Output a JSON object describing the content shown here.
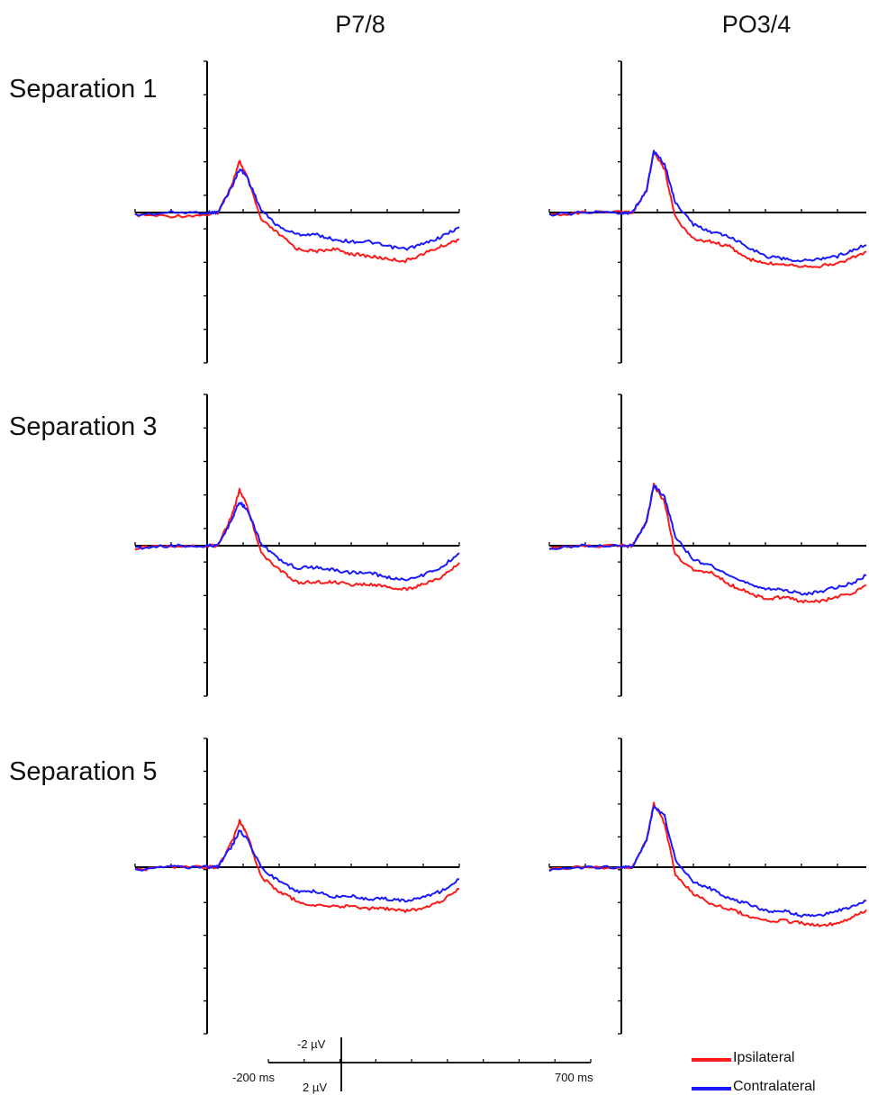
{
  "chart_data": {
    "type": "line",
    "columns": [
      "P7/8",
      "PO3/4"
    ],
    "rows": [
      "Separation 1",
      "Separation 3",
      "Separation 5"
    ],
    "xlabel": "",
    "ylabel": "",
    "x_range_ms": [
      -200,
      700
    ],
    "y_axis_inverted": true,
    "grid": false,
    "legend_position": "bottom-right",
    "scale_bar": {
      "x_start_label": "-200 ms",
      "x_end_label": "700 ms",
      "y_top_label": "-2 µV",
      "y_bottom_label": "2 µV"
    },
    "series_names": [
      "Ipsilateral",
      "Contralateral"
    ],
    "series_colors": {
      "Ipsilateral": "#ff1a1a",
      "Contralateral": "#1a1aff"
    },
    "panels": [
      {
        "column": "P7/8",
        "row": "Separation 1",
        "series": [
          {
            "name": "Ipsilateral",
            "x": [
              -200,
              -100,
              0,
              30,
              70,
              90,
              110,
              150,
              200,
              250,
              300,
              350,
              400,
              450,
              500,
              550,
              600,
              650,
              700
            ],
            "y": [
              0.1,
              0.15,
              0.1,
              0.0,
              -1.2,
              -2.1,
              -1.5,
              0.3,
              0.9,
              1.5,
              1.6,
              1.5,
              1.7,
              1.8,
              1.9,
              2.0,
              1.7,
              1.4,
              1.1
            ]
          },
          {
            "name": "Contralateral",
            "x": [
              -200,
              -100,
              0,
              30,
              70,
              90,
              110,
              150,
              200,
              250,
              300,
              350,
              400,
              450,
              500,
              550,
              600,
              650,
              700
            ],
            "y": [
              0.1,
              0.0,
              0.0,
              0.0,
              -1.1,
              -1.8,
              -1.5,
              -0.1,
              0.6,
              0.9,
              0.9,
              1.1,
              1.2,
              1.2,
              1.4,
              1.5,
              1.3,
              1.0,
              0.6
            ]
          }
        ]
      },
      {
        "column": "PO3/4",
        "row": "Separation 1",
        "series": [
          {
            "name": "Ipsilateral",
            "x": [
              -200,
              -100,
              0,
              30,
              70,
              90,
              120,
              150,
              200,
              250,
              300,
              350,
              400,
              450,
              500,
              550,
              600,
              650,
              700
            ],
            "y": [
              0.1,
              0.0,
              0.0,
              0.0,
              -0.9,
              -2.5,
              -1.8,
              0.2,
              1.1,
              1.2,
              1.4,
              1.9,
              2.1,
              2.1,
              2.2,
              2.2,
              2.1,
              1.8,
              1.5
            ]
          },
          {
            "name": "Contralateral",
            "x": [
              -200,
              -100,
              0,
              30,
              70,
              90,
              120,
              150,
              200,
              250,
              300,
              350,
              400,
              450,
              500,
              550,
              600,
              650,
              700
            ],
            "y": [
              0.1,
              0.0,
              0.0,
              0.0,
              -0.9,
              -2.5,
              -2.0,
              -0.4,
              0.5,
              0.8,
              1.0,
              1.4,
              1.8,
              1.9,
              2.0,
              1.9,
              1.8,
              1.5,
              1.2
            ]
          }
        ]
      },
      {
        "column": "P7/8",
        "row": "Separation 3",
        "series": [
          {
            "name": "Ipsilateral",
            "x": [
              -200,
              -100,
              0,
              30,
              70,
              90,
              110,
              150,
              200,
              250,
              300,
              350,
              400,
              450,
              500,
              550,
              600,
              650,
              700
            ],
            "y": [
              0.1,
              0.0,
              0.0,
              0.0,
              -1.3,
              -2.3,
              -1.7,
              0.3,
              1.0,
              1.5,
              1.5,
              1.5,
              1.6,
              1.6,
              1.7,
              1.8,
              1.6,
              1.3,
              0.7
            ]
          },
          {
            "name": "Contralateral",
            "x": [
              -200,
              -100,
              0,
              30,
              70,
              90,
              110,
              150,
              200,
              250,
              300,
              350,
              400,
              450,
              500,
              550,
              600,
              650,
              700
            ],
            "y": [
              0.1,
              0.0,
              0.0,
              0.0,
              -1.1,
              -1.8,
              -1.5,
              -0.1,
              0.6,
              0.9,
              0.9,
              1.0,
              1.1,
              1.1,
              1.3,
              1.4,
              1.2,
              0.9,
              0.3
            ]
          }
        ]
      },
      {
        "column": "PO3/4",
        "row": "Separation 3",
        "series": [
          {
            "name": "Ipsilateral",
            "x": [
              -200,
              -100,
              0,
              30,
              70,
              90,
              120,
              150,
              200,
              250,
              300,
              350,
              400,
              450,
              500,
              550,
              600,
              650,
              700
            ],
            "y": [
              0.1,
              0.0,
              0.0,
              0.0,
              -1.0,
              -2.5,
              -1.8,
              0.4,
              1.0,
              1.1,
              1.6,
              1.9,
              2.2,
              2.1,
              2.3,
              2.3,
              2.1,
              1.9,
              1.5
            ]
          },
          {
            "name": "Contralateral",
            "x": [
              -200,
              -100,
              0,
              30,
              70,
              90,
              120,
              150,
              200,
              250,
              300,
              350,
              400,
              450,
              500,
              550,
              600,
              650,
              700
            ],
            "y": [
              0.1,
              0.0,
              0.0,
              0.0,
              -1.0,
              -2.5,
              -2.0,
              -0.4,
              0.6,
              0.8,
              1.3,
              1.5,
              1.8,
              1.8,
              2.0,
              1.9,
              1.7,
              1.5,
              1.0
            ]
          }
        ]
      },
      {
        "column": "P7/8",
        "row": "Separation 5",
        "series": [
          {
            "name": "Ipsilateral",
            "x": [
              -200,
              -100,
              0,
              30,
              70,
              90,
              110,
              150,
              200,
              250,
              300,
              350,
              400,
              450,
              500,
              550,
              600,
              650,
              700
            ],
            "y": [
              0.1,
              0.0,
              0.0,
              0.0,
              -1.1,
              -1.9,
              -1.4,
              0.4,
              1.0,
              1.4,
              1.6,
              1.6,
              1.6,
              1.7,
              1.7,
              1.8,
              1.7,
              1.4,
              0.9
            ]
          },
          {
            "name": "Contralateral",
            "x": [
              -200,
              -100,
              0,
              30,
              70,
              90,
              110,
              150,
              200,
              250,
              300,
              350,
              400,
              450,
              500,
              550,
              600,
              650,
              700
            ],
            "y": [
              0.1,
              0.0,
              0.0,
              0.0,
              -0.9,
              -1.5,
              -1.2,
              0.0,
              0.6,
              1.0,
              1.0,
              1.2,
              1.2,
              1.3,
              1.3,
              1.4,
              1.2,
              1.0,
              0.5
            ]
          }
        ]
      },
      {
        "column": "PO3/4",
        "row": "Separation 5",
        "series": [
          {
            "name": "Ipsilateral",
            "x": [
              -200,
              -100,
              0,
              30,
              70,
              90,
              120,
              150,
              200,
              250,
              300,
              350,
              400,
              450,
              500,
              550,
              600,
              650,
              700
            ],
            "y": [
              0.1,
              0.0,
              0.0,
              0.0,
              -1.1,
              -2.6,
              -1.8,
              0.3,
              1.1,
              1.5,
              1.7,
              2.0,
              2.2,
              2.2,
              2.3,
              2.4,
              2.3,
              2.0,
              1.6
            ]
          },
          {
            "name": "Contralateral",
            "x": [
              -200,
              -100,
              0,
              30,
              70,
              90,
              120,
              150,
              200,
              250,
              300,
              350,
              400,
              450,
              500,
              550,
              600,
              650,
              700
            ],
            "y": [
              0.1,
              0.0,
              0.0,
              0.0,
              -1.1,
              -2.5,
              -2.1,
              -0.3,
              0.6,
              0.9,
              1.3,
              1.5,
              1.8,
              1.8,
              2.0,
              2.0,
              1.8,
              1.6,
              1.2
            ]
          }
        ]
      }
    ]
  }
}
